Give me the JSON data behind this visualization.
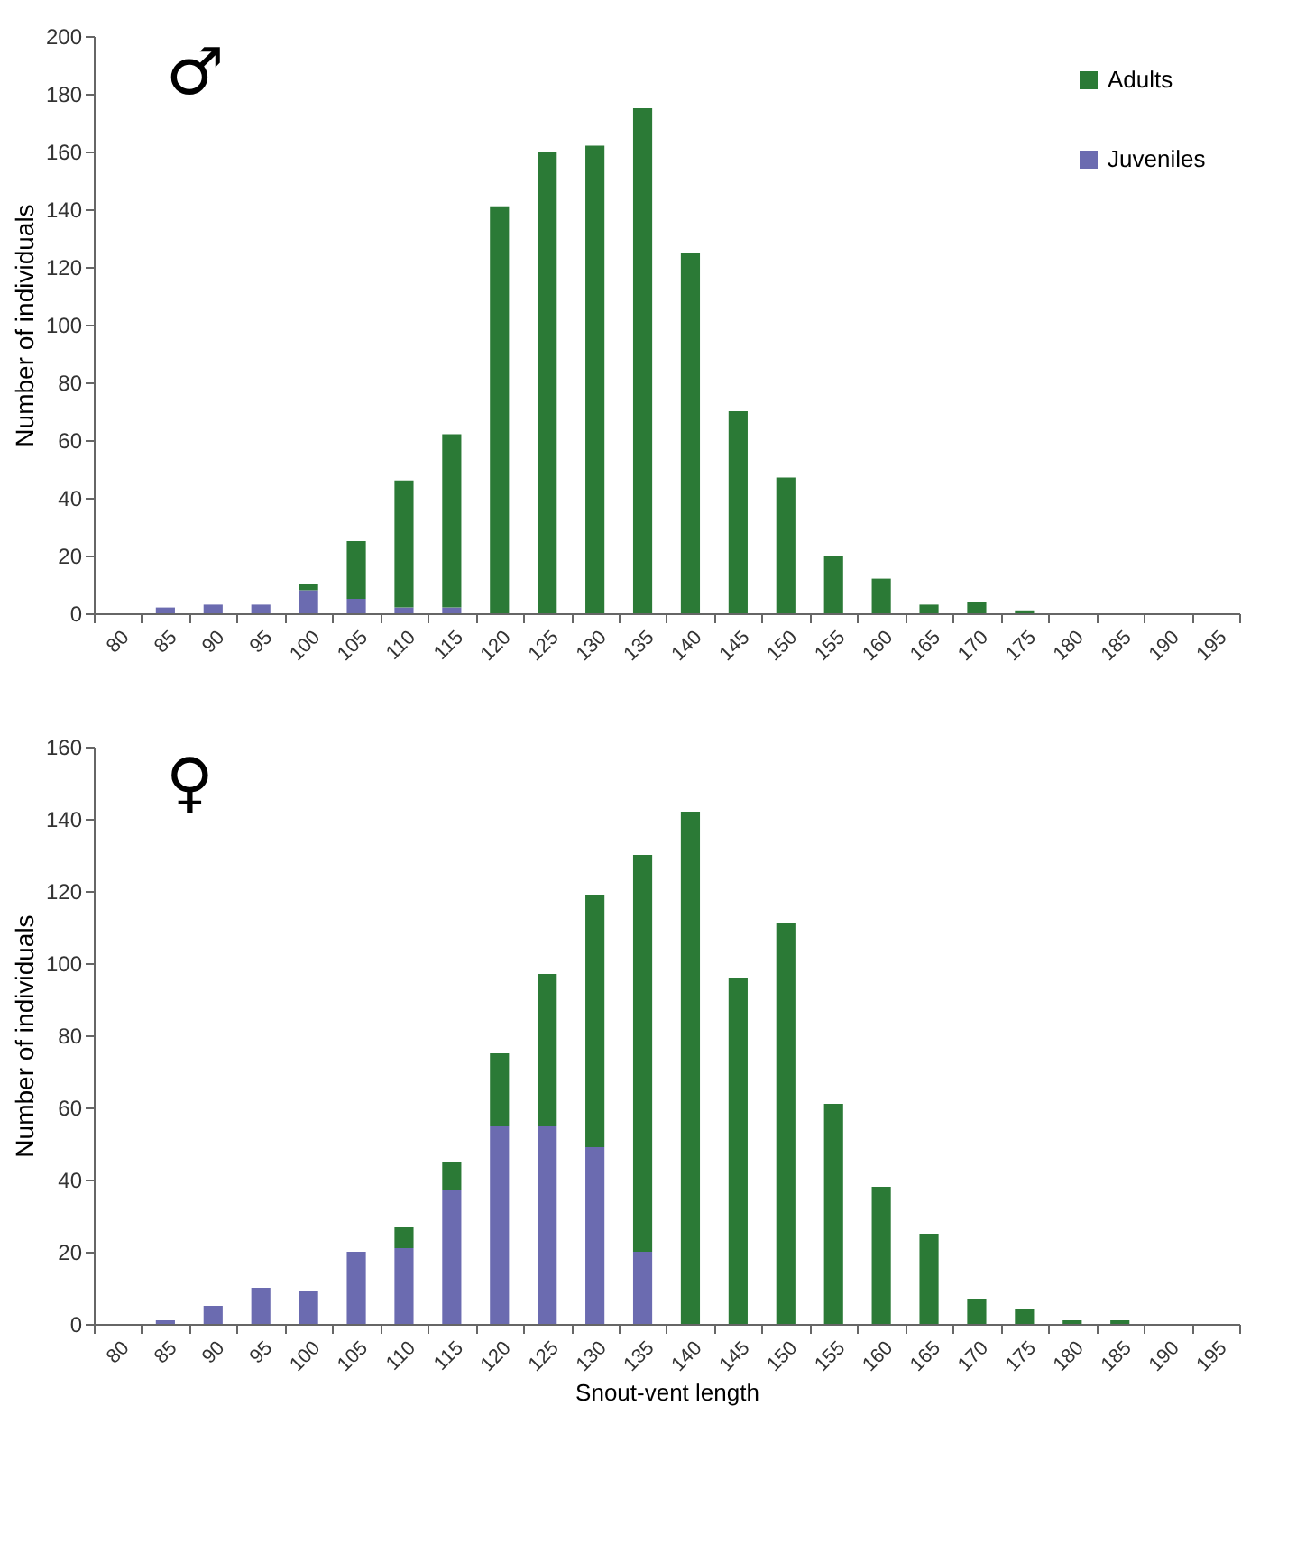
{
  "chart_data": [
    {
      "type": "bar",
      "stacked": true,
      "ylabel": "Number of individuals",
      "annotations": [
        "♂"
      ],
      "legend": "top right",
      "grid": false,
      "categories": [
        "80",
        "85",
        "90",
        "95",
        "100",
        "105",
        "110",
        "115",
        "120",
        "125",
        "130",
        "135",
        "140",
        "145",
        "150",
        "155",
        "160",
        "165",
        "170",
        "175",
        "180",
        "185",
        "190",
        "195"
      ],
      "ylim": [
        0,
        200
      ],
      "yticks": [
        0,
        20,
        40,
        60,
        80,
        100,
        120,
        140,
        160,
        180,
        200
      ],
      "series": [
        {
          "name": "Juveniles",
          "color": "#6b6bb0",
          "values": [
            0,
            2,
            3,
            3,
            8,
            5,
            2,
            2,
            0,
            0,
            0,
            0,
            0,
            0,
            0,
            0,
            0,
            0,
            0,
            0,
            0,
            0,
            0,
            0
          ]
        },
        {
          "name": "Adults",
          "color": "#2b7a36",
          "values": [
            0,
            0,
            0,
            0,
            2,
            20,
            44,
            60,
            141,
            160,
            162,
            175,
            125,
            70,
            47,
            20,
            12,
            3,
            4,
            1,
            0,
            0,
            0,
            0
          ]
        }
      ]
    },
    {
      "type": "bar",
      "stacked": true,
      "ylabel": "Number of individuals",
      "xlabel": "Snout-vent length",
      "annotations": [
        "♀"
      ],
      "grid": false,
      "categories": [
        "80",
        "85",
        "90",
        "95",
        "100",
        "105",
        "110",
        "115",
        "120",
        "125",
        "130",
        "135",
        "140",
        "145",
        "150",
        "155",
        "160",
        "165",
        "170",
        "175",
        "180",
        "185",
        "190",
        "195"
      ],
      "ylim": [
        0,
        160
      ],
      "yticks": [
        0,
        20,
        40,
        60,
        80,
        100,
        120,
        140,
        160
      ],
      "series": [
        {
          "color": "#6b6bb0",
          "values": [
            0,
            1,
            5,
            10,
            9,
            20,
            21,
            37,
            55,
            55,
            49,
            20,
            0,
            0,
            0,
            0,
            0,
            0,
            0,
            0,
            0,
            0,
            0,
            0
          ]
        },
        {
          "color": "#2b7a36",
          "values": [
            0,
            0,
            0,
            0,
            0,
            0,
            6,
            8,
            20,
            42,
            70,
            110,
            142,
            96,
            111,
            61,
            38,
            25,
            7,
            4,
            1,
            1,
            0,
            0
          ]
        }
      ]
    }
  ]
}
